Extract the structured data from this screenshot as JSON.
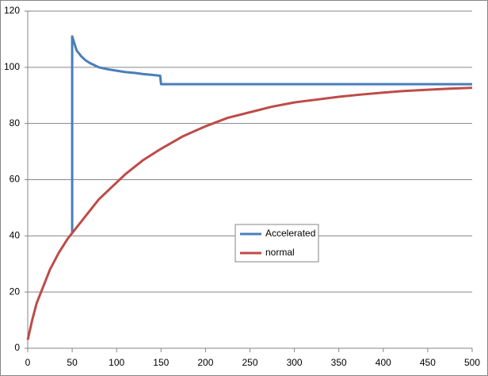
{
  "chart_data": {
    "type": "line",
    "xlim": [
      0,
      500
    ],
    "xticks": [
      0,
      50,
      100,
      150,
      200,
      250,
      300,
      350,
      400,
      450,
      500
    ],
    "ylim": [
      0,
      120
    ],
    "yticks": [
      0,
      20,
      40,
      60,
      80,
      100,
      120
    ],
    "grid": true,
    "legend": "center",
    "series": [
      {
        "name": "Accelerated",
        "color": "#4a7ebb",
        "x": [
          50,
          50,
          52,
          55,
          60,
          65,
          70,
          80,
          90,
          100,
          110,
          120,
          130,
          140,
          149,
          150,
          500
        ],
        "values": [
          41,
          111,
          109,
          106,
          104,
          102.5,
          101.5,
          100,
          99.3,
          98.8,
          98.3,
          98,
          97.6,
          97.3,
          97,
          94,
          94
        ]
      },
      {
        "name": "normal",
        "color": "#be4b48",
        "x": [
          0,
          5,
          10,
          15,
          20,
          25,
          30,
          35,
          40,
          45,
          50,
          60,
          70,
          80,
          90,
          100,
          110,
          120,
          130,
          140,
          150,
          175,
          200,
          225,
          250,
          275,
          300,
          325,
          350,
          375,
          400,
          425,
          450,
          475,
          500
        ],
        "values": [
          3,
          10,
          16,
          20,
          24,
          28,
          31,
          34,
          36.5,
          39,
          41,
          45,
          49,
          53,
          56,
          59,
          62,
          64.5,
          67,
          69,
          71,
          75.5,
          79,
          82,
          84,
          86,
          87.5,
          88.5,
          89.5,
          90.3,
          91,
          91.6,
          92,
          92.4,
          92.7
        ]
      }
    ]
  }
}
